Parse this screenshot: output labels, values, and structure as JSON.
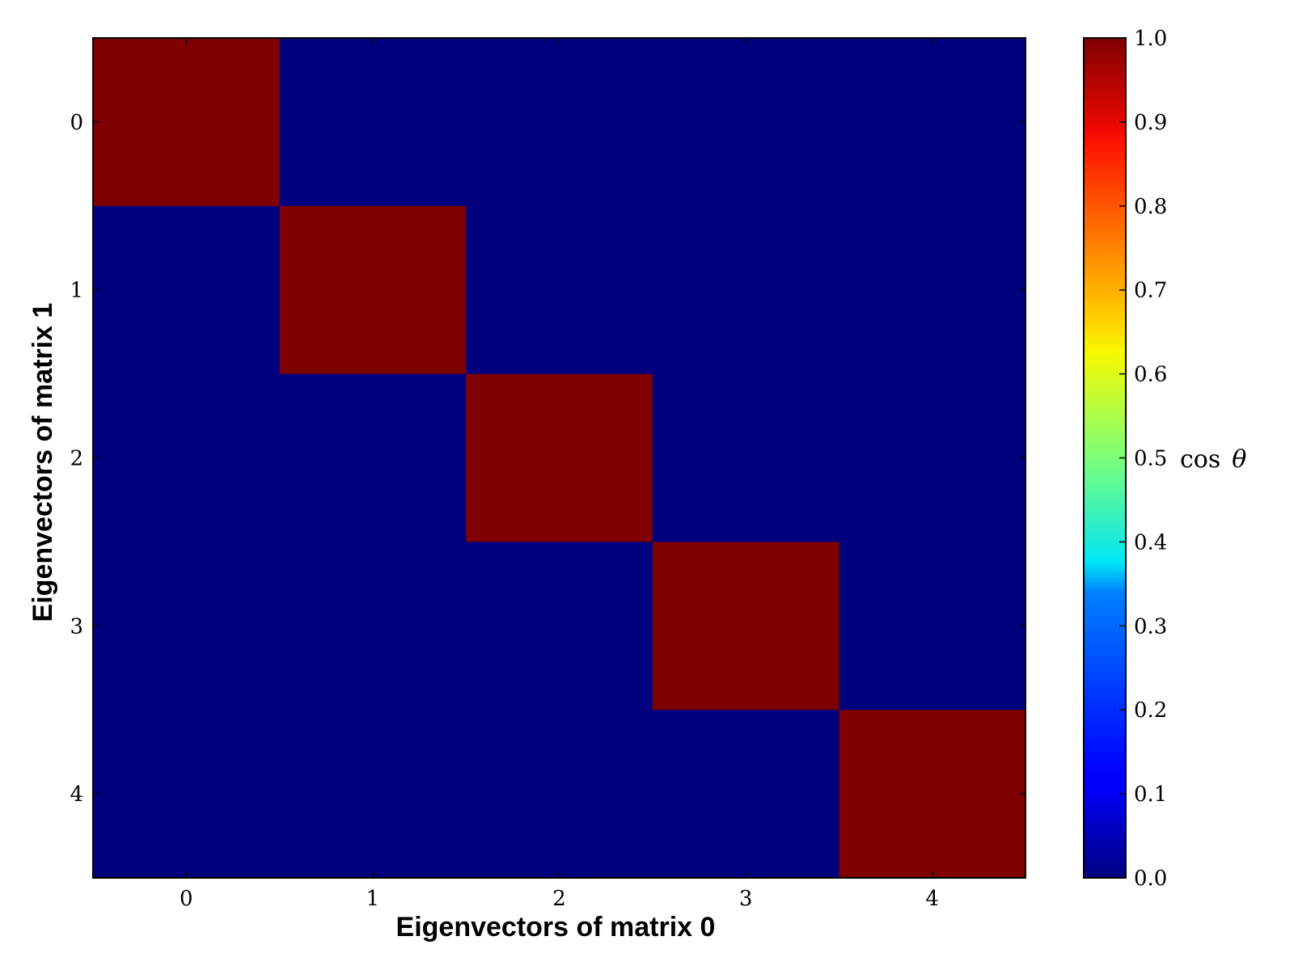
{
  "chart_data": {
    "type": "heatmap",
    "title": "",
    "xlabel": "Eigenvectors of matrix 0",
    "ylabel": "Eigenvectors of matrix 1",
    "x_categories": [
      "0",
      "1",
      "2",
      "3",
      "4"
    ],
    "y_categories": [
      "0",
      "1",
      "2",
      "3",
      "4"
    ],
    "values": [
      [
        1.0,
        0.0,
        0.0,
        0.0,
        0.0
      ],
      [
        0.0,
        1.0,
        0.0,
        0.0,
        0.0
      ],
      [
        0.0,
        0.0,
        1.0,
        0.0,
        0.0
      ],
      [
        0.0,
        0.0,
        0.0,
        1.0,
        0.0
      ],
      [
        0.0,
        0.0,
        0.0,
        0.0,
        1.0
      ]
    ],
    "colorbar": {
      "label_text": "cos",
      "label_symbol": "θ",
      "range": [
        0.0,
        1.0
      ],
      "ticks": [
        "0.0",
        "0.1",
        "0.2",
        "0.3",
        "0.4",
        "0.5",
        "0.6",
        "0.7",
        "0.8",
        "0.9",
        "1.0"
      ],
      "colormap": "jet"
    },
    "grid": false,
    "colors": {
      "low": "#00007f",
      "high": "#7f0000",
      "axis": "#000000",
      "background": "#ffffff"
    }
  }
}
